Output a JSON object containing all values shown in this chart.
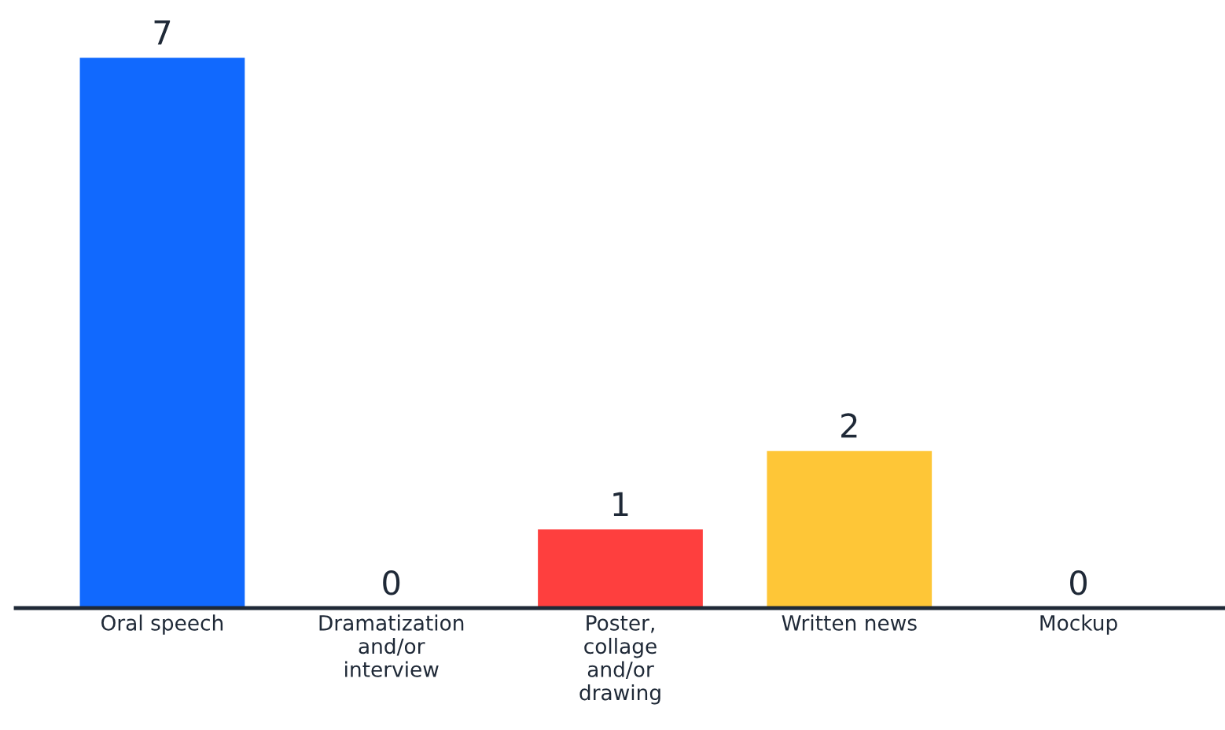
{
  "chart_data": {
    "type": "bar",
    "categories": [
      "Oral speech",
      "Dramatization and/or interview",
      "Poster, collage and/or drawing",
      "Written news",
      "Mockup"
    ],
    "values": [
      7,
      0,
      1,
      2,
      0
    ],
    "colors": [
      "#1169fe",
      "#8e44ad",
      "#fe3f3e",
      "#fec637",
      "#2ec4b6"
    ],
    "data_labels": true
  }
}
